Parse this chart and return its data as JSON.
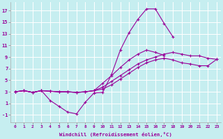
{
  "xlabel": "Windchill (Refroidissement éolien,°C)",
  "bg_color": "#c6eef0",
  "line_color": "#990099",
  "grid_color": "#b0d8dc",
  "xlim": [
    -0.5,
    23.5
  ],
  "ylim": [
    -2.2,
    18.5
  ],
  "xticks": [
    0,
    1,
    2,
    3,
    4,
    5,
    6,
    7,
    8,
    9,
    10,
    11,
    12,
    13,
    14,
    15,
    16,
    17,
    18,
    19,
    20,
    21,
    22,
    23
  ],
  "yticks": [
    -1,
    1,
    3,
    5,
    7,
    9,
    11,
    13,
    15,
    17
  ],
  "series": [
    [
      3.0,
      3.2,
      2.9,
      3.2,
      1.5,
      0.5,
      -0.5,
      -0.8,
      1.2,
      2.8,
      2.9,
      6.0,
      10.2,
      13.2,
      15.5,
      17.3,
      17.3,
      14.8,
      12.5,
      null,
      null,
      null,
      null,
      null
    ],
    [
      3.0,
      3.2,
      2.9,
      3.2,
      3.1,
      3.0,
      3.0,
      2.9,
      3.0,
      3.2,
      4.5,
      5.8,
      7.2,
      8.5,
      9.5,
      10.2,
      9.8,
      9.3,
      null,
      null,
      null,
      null,
      null,
      null
    ],
    [
      3.0,
      3.2,
      2.9,
      3.2,
      3.1,
      3.0,
      3.0,
      2.9,
      3.0,
      3.2,
      3.8,
      4.8,
      5.8,
      6.8,
      7.8,
      8.5,
      9.0,
      9.5,
      9.8,
      9.5,
      9.2,
      9.2,
      8.8,
      8.6
    ],
    [
      3.0,
      3.2,
      2.9,
      3.2,
      3.1,
      3.0,
      3.0,
      2.9,
      3.0,
      3.2,
      3.5,
      4.2,
      5.2,
      6.2,
      7.2,
      8.0,
      8.5,
      8.8,
      8.5,
      8.0,
      7.8,
      7.5,
      7.5,
      8.6
    ]
  ]
}
